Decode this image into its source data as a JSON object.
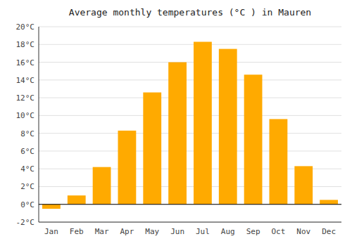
{
  "chart_data": {
    "type": "bar",
    "title": "Average monthly temperatures (°C ) in Mauren",
    "categories": [
      "Jan",
      "Feb",
      "Mar",
      "Apr",
      "May",
      "Jun",
      "Jul",
      "Aug",
      "Sep",
      "Oct",
      "Nov",
      "Dec"
    ],
    "values": [
      -0.5,
      1.0,
      4.2,
      8.3,
      12.6,
      16.0,
      18.3,
      17.5,
      14.6,
      9.6,
      4.3,
      0.5
    ],
    "color": "#FFAA00",
    "ylim": [
      -2,
      20
    ],
    "yticks": [
      {
        "value": -2,
        "label": "-2°C"
      },
      {
        "value": 0,
        "label": "0°C"
      },
      {
        "value": 2,
        "label": "2°C"
      },
      {
        "value": 4,
        "label": "4°C"
      },
      {
        "value": 6,
        "label": "6°C"
      },
      {
        "value": 8,
        "label": "8°C"
      },
      {
        "value": 10,
        "label": "10°C"
      },
      {
        "value": 12,
        "label": "12°C"
      },
      {
        "value": 14,
        "label": "14°C"
      },
      {
        "value": 16,
        "label": "16°C"
      },
      {
        "value": 18,
        "label": "18°C"
      },
      {
        "value": 20,
        "label": "20°C"
      }
    ],
    "grid": true
  }
}
